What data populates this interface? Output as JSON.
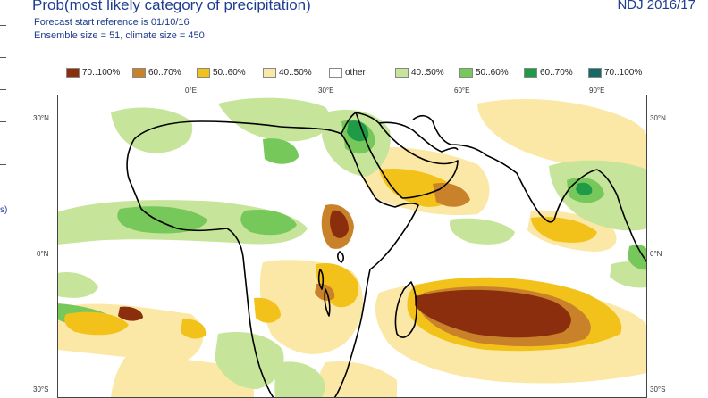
{
  "header": {
    "title": "Prob(most likely category of precipitation)",
    "subtitle_1": "Forecast start reference is 01/10/16",
    "subtitle_2": "Ensemble size = 51, climate size = 450",
    "period": "NDJ 2016/17"
  },
  "left_edge_text": "s)",
  "legend": [
    {
      "label": "70..100%",
      "color": "#8b2e0e"
    },
    {
      "label": "60..70%",
      "color": "#c9822a"
    },
    {
      "label": "50..60%",
      "color": "#f2c21b"
    },
    {
      "label": "40..50%",
      "color": "#fbe8a6"
    },
    {
      "label": "other",
      "color": "#ffffff"
    },
    {
      "label": "40..50%",
      "color": "#c6e59a"
    },
    {
      "label": "50..60%",
      "color": "#77c85b"
    },
    {
      "label": "60..70%",
      "color": "#1f9a47"
    },
    {
      "label": "70..100%",
      "color": "#156b63"
    }
  ],
  "axes": {
    "top": [
      "0°E",
      "30°E",
      "60°E",
      "90°E"
    ],
    "left": [
      "30°N",
      "0°N",
      "30°S"
    ],
    "right": [
      "30°N",
      "0°N",
      "30°S"
    ]
  },
  "map": {
    "lon_range": [
      -28,
      105
    ],
    "lat_range": [
      33,
      -32
    ]
  }
}
